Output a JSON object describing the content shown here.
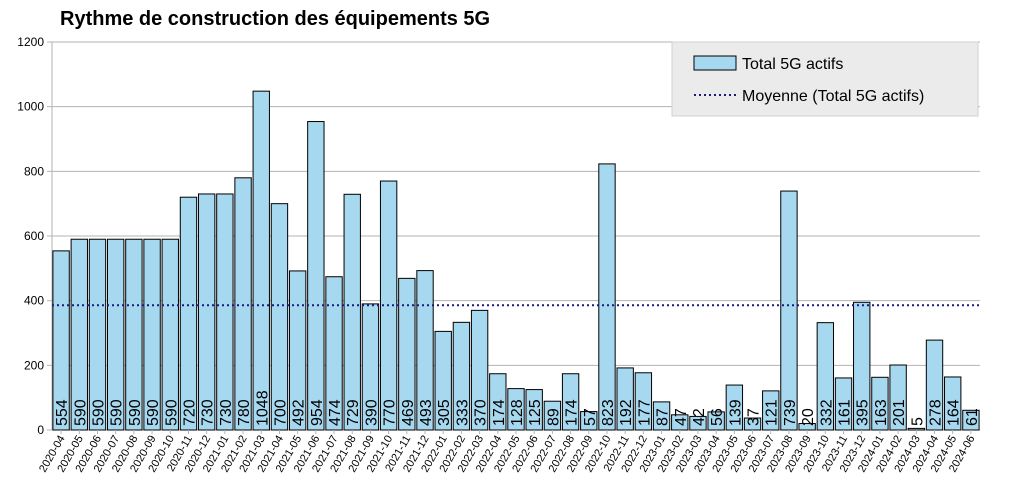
{
  "chart_data": {
    "type": "bar",
    "title": "Rythme de construction des équipements 5G",
    "xlabel": "",
    "ylabel": "",
    "ylim": [
      0,
      1200
    ],
    "yticks": [
      0,
      200,
      400,
      600,
      800,
      1000,
      1200
    ],
    "grid": true,
    "legend_position": "top-right",
    "categories": [
      "2020-04",
      "2020-05",
      "2020-06",
      "2020-07",
      "2020-08",
      "2020-09",
      "2020-10",
      "2020-11",
      "2020-12",
      "2021-01",
      "2021-02",
      "2021-03",
      "2021-04",
      "2021-05",
      "2021-06",
      "2021-07",
      "2021-08",
      "2021-09",
      "2021-10",
      "2021-11",
      "2021-12",
      "2022-01",
      "2022-02",
      "2022-03",
      "2022-04",
      "2022-05",
      "2022-06",
      "2022-07",
      "2022-08",
      "2022-09",
      "2022-10",
      "2022-11",
      "2022-12",
      "2023-01",
      "2023-02",
      "2023-03",
      "2023-04",
      "2023-05",
      "2023-06",
      "2023-07",
      "2023-08",
      "2023-09",
      "2023-10",
      "2023-11",
      "2023-12",
      "2024-01",
      "2024-02",
      "2024-03",
      "2024-04",
      "2024-05",
      "2024-06"
    ],
    "series": [
      {
        "name": "Total 5G actifs",
        "color": "#a6d8f0",
        "values": [
          554,
          590,
          590,
          590,
          590,
          590,
          590,
          720,
          730,
          730,
          780,
          1048,
          700,
          492,
          954,
          474,
          729,
          390,
          770,
          469,
          493,
          305,
          333,
          370,
          174,
          128,
          125,
          89,
          174,
          57,
          823,
          192,
          177,
          87,
          47,
          42,
          56,
          139,
          37,
          121,
          739,
          20,
          332,
          161,
          395,
          163,
          201,
          5,
          278,
          164,
          61
        ]
      }
    ],
    "reference_lines": [
      {
        "name": "Moyenne (Total 5G actifs)",
        "value": 386,
        "color": "#1a1a7a",
        "style": "dotted"
      }
    ]
  }
}
